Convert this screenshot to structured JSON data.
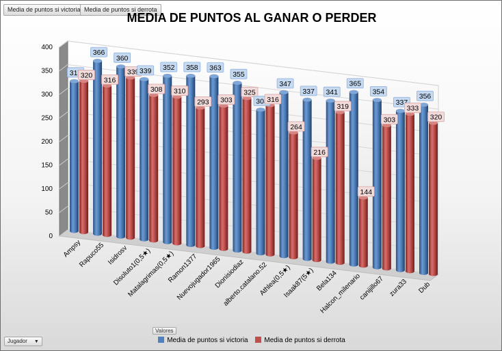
{
  "ui": {
    "field_buttons": [
      "Media de puntos si victoria",
      "Media de puntos si derrota"
    ],
    "values_button": "Valores",
    "filter_button": "Jugador",
    "filter_arrow": "▼"
  },
  "colors": {
    "victoria": "#4f81bd",
    "derrota": "#c0504d",
    "label_blue": "#c5d9f1",
    "label_red": "#f2dcdb"
  },
  "chart_data": {
    "type": "bar",
    "title": "MEDIA DE PUNTOS AL GANAR O PERDER",
    "categories": [
      "Ampsy",
      "Rapuco55",
      "Isidrosv",
      "Disoluto1(0,5★)",
      "Matalagrimas(0,5★)",
      "Ramon1377",
      "Nuevojugador1965",
      "Dionisiodiaz",
      "alberto.catalano.52",
      "Athlea(0,5★)",
      "Isaak87(5★)",
      "Bela134",
      "Halcon_milenario",
      "canijillo67",
      "zura33",
      "Dub"
    ],
    "series": [
      {
        "name": "Media de puntos si victoria",
        "values": [
          317,
          366,
          360,
          339,
          352,
          358,
          363,
          355,
          304,
          347,
          337,
          341,
          365,
          354,
          337,
          356
        ]
      },
      {
        "name": "Media de puntos si derrota",
        "values": [
          320,
          316,
          339,
          308,
          310,
          293,
          303,
          325,
          316,
          264,
          216,
          319,
          144,
          303,
          333,
          320
        ]
      }
    ],
    "ylim": [
      0,
      400
    ],
    "yticks": [
      0,
      50,
      100,
      150,
      200,
      250,
      300,
      350,
      400
    ],
    "xlabel": "",
    "ylabel": "",
    "legend": "bottom"
  }
}
